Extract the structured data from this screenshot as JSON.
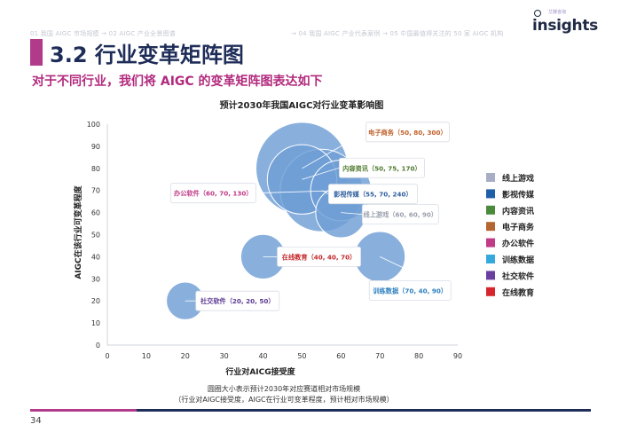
{
  "nav": {
    "left": "01 我国 AIGC 市场规模 → 02 AIGC 产业全景图谱",
    "right": "→ 04 我国 AIGC 产业代表案例 → 05 中国最值得关注的 50 家 AIGC 机构"
  },
  "logo": {
    "tagline": "艾媒咨询",
    "word": "insights"
  },
  "header": {
    "title": "3.2 行业变革矩阵图",
    "subtitle": "对于不同行业，我们将 AIGC 的变革矩阵图表达如下"
  },
  "chart_data": {
    "type": "scatter",
    "title": "预计2030年我国AIGC对行业变革影响图",
    "xlabel": "行业对AICG接受度",
    "ylabel": "AIGC在该行业可变革程度",
    "xlim": [
      0,
      90
    ],
    "ylim": [
      0,
      100
    ],
    "xticks": [
      0,
      10,
      20,
      30,
      40,
      50,
      60,
      70,
      80,
      90
    ],
    "yticks": [
      0,
      10,
      20,
      30,
      40,
      50,
      60,
      70,
      80,
      90,
      100
    ],
    "points": [
      {
        "name": "电子商务",
        "x": 50,
        "y": 80,
        "size": 300,
        "label": "电子商务（50, 80, 300）",
        "label_color": "#c0602a"
      },
      {
        "name": "内容资讯",
        "x": 50,
        "y": 75,
        "size": 170,
        "label": "内容资讯（50, 75, 170）",
        "label_color": "#4f7a30"
      },
      {
        "name": "影视传媒",
        "x": 55,
        "y": 70,
        "size": 240,
        "label": "影视传媒（55, 70, 240）",
        "label_color": "#2e5e9e"
      },
      {
        "name": "办公软件",
        "x": 60,
        "y": 70,
        "size": 130,
        "label": "办公软件（60, 70, 130）",
        "label_color": "#c03a86"
      },
      {
        "name": "线上游戏",
        "x": 60,
        "y": 60,
        "size": 90,
        "label": "线上游戏（60, 60, 90）",
        "label_color": "#9aa0ad"
      },
      {
        "name": "在线教育",
        "x": 40,
        "y": 40,
        "size": 70,
        "label": "在线教育（40, 40, 70）",
        "label_color": "#c4282a"
      },
      {
        "name": "训练数据",
        "x": 70,
        "y": 40,
        "size": 90,
        "label": "训练数据（70, 40, 90）",
        "label_color": "#2e7fbf"
      },
      {
        "name": "社交软件",
        "x": 20,
        "y": 20,
        "size": 50,
        "label": "社交软件（20, 20, 50）",
        "label_color": "#5b3a93"
      }
    ],
    "legend": [
      {
        "label": "线上游戏",
        "color": "#a7adc4"
      },
      {
        "label": "影视传媒",
        "color": "#1f5fa8"
      },
      {
        "label": "内容资讯",
        "color": "#4a8a3a"
      },
      {
        "label": "电子商务",
        "color": "#b5652f"
      },
      {
        "label": "办公软件",
        "color": "#c03a86"
      },
      {
        "label": "训练数据",
        "color": "#35a8dc"
      },
      {
        "label": "社交软件",
        "color": "#6a3fa0"
      },
      {
        "label": "在线教育",
        "color": "#d7262b"
      }
    ],
    "legend_position": "right"
  },
  "captions": {
    "line1": "圆圈大小表示预计2030年对应赛道相对市场规模",
    "line2": "（行业对AIGC接受度，AIGC在行业可变革程度，预计相对市场规模）"
  },
  "page_number": "34",
  "colors": {
    "bubble": "#6f9fd6",
    "axis": "#cfd3db",
    "accent": "#b23a8a",
    "navy": "#1e2c58"
  }
}
